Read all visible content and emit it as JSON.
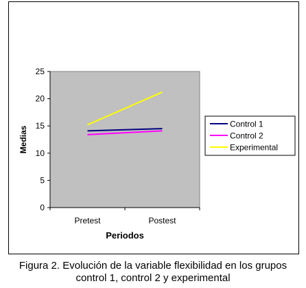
{
  "chart_data": {
    "type": "line",
    "categories": [
      "Pretest",
      "Postest"
    ],
    "series": [
      {
        "name": "Control 1",
        "values": [
          14.1,
          14.5
        ],
        "color": "#000080"
      },
      {
        "name": "Control 2",
        "values": [
          13.4,
          14.1
        ],
        "color": "#ff00ff"
      },
      {
        "name": "Experimental",
        "values": [
          15.2,
          21.2
        ],
        "color": "#ffff00"
      }
    ],
    "xlabel": "Periodos",
    "ylabel": "Medias",
    "ylim": [
      0,
      25
    ],
    "yticks": [
      0,
      5,
      10,
      15,
      20,
      25
    ],
    "grid": false,
    "plot_background": "#c0c0c0",
    "legend_position": "right"
  },
  "caption": {
    "line1": "Figura 2. Evolución de la variable flexibilidad en los grupos",
    "line2": "control 1, control 2 y experimental"
  }
}
